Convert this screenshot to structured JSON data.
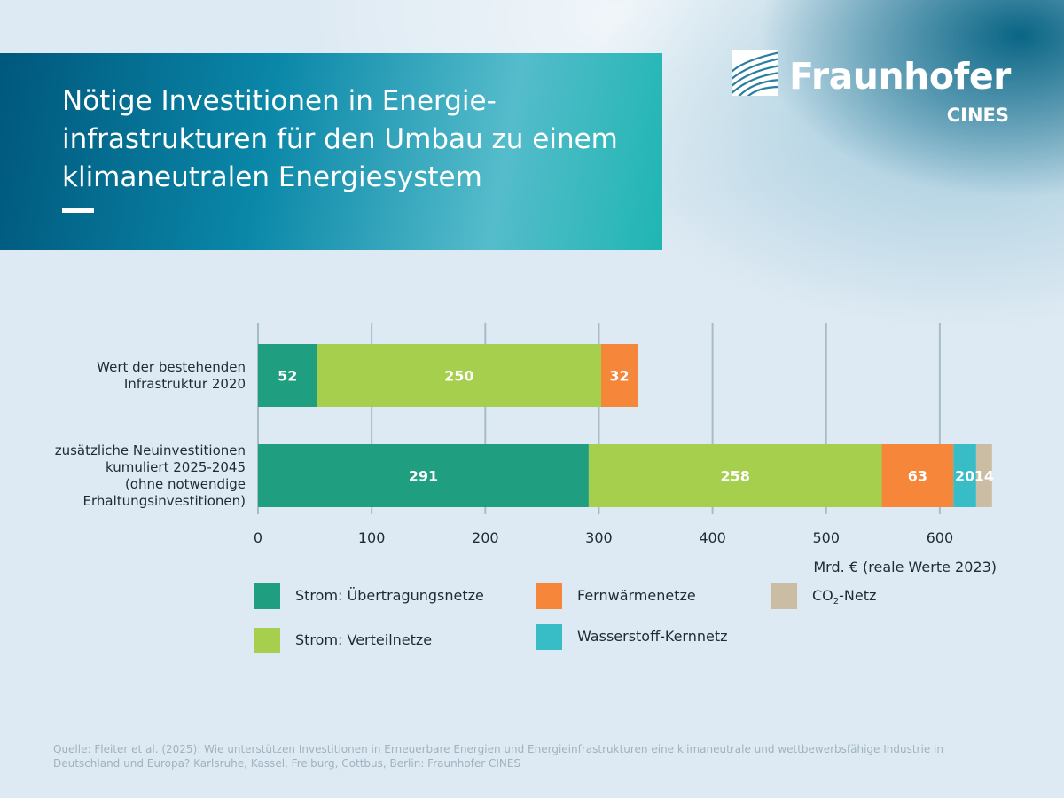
{
  "header": {
    "title_lines": [
      "Nötige Investitionen in Energie-",
      "infrastrukturen für den Umbau zu einem",
      "klimaneutralen Energiesystem"
    ],
    "logo_name": "Fraunhofer",
    "logo_sub": "CINES"
  },
  "chart_data": {
    "type": "bar",
    "orientation": "horizontal",
    "stacked": true,
    "categories": [
      [
        "Wert der bestehenden",
        "Infrastruktur 2020"
      ],
      [
        "zusätzliche Neuinvestitionen",
        "kumuliert 2025-2045",
        "(ohne notwendige",
        "Erhaltungsinvestitionen)"
      ]
    ],
    "series": [
      {
        "name": "Strom: Übertragungsnetze",
        "color": "#1f9f80",
        "values": [
          52,
          291
        ]
      },
      {
        "name": "Strom: Verteilnetze",
        "color": "#a7cf4e",
        "values": [
          250,
          258
        ]
      },
      {
        "name": "Fernwärmenetze",
        "color": "#f5863a",
        "values": [
          32,
          63
        ]
      },
      {
        "name": "Wasserstoff-Kernnetz",
        "color": "#38bcc6",
        "values": [
          0,
          20
        ]
      },
      {
        "name": "CO2-Netz",
        "color": "#cbbda4",
        "values": [
          0,
          14
        ]
      }
    ],
    "xlim": [
      0,
      650
    ],
    "xticks": [
      0,
      100,
      200,
      300,
      400,
      500,
      600
    ],
    "xlabel": "Mrd. € (reale Werte 2023)",
    "grid": "vertical",
    "legend_position": "bottom"
  },
  "legend": {
    "items": [
      {
        "label": "Strom: Übertragungsnetze",
        "color": "#1f9f80"
      },
      {
        "label": "Strom: Verteilnetze",
        "color": "#a7cf4e"
      },
      {
        "label": "Fernwärmenetze",
        "color": "#f5863a"
      },
      {
        "label": "Wasserstoff-Kernnetz",
        "color": "#38bcc6"
      },
      {
        "label_main": "CO",
        "label_sub": "2",
        "label_rest": "-Netz",
        "color": "#cbbda4"
      }
    ]
  },
  "footer": {
    "source": "Quelle: Fleiter et al. (2025): Wie unterstützen Investitionen in Erneuerbare Energien und Energieinfrastrukturen eine klimaneutrale und wettbewerbsfähige Industrie in Deutsch­land und Europa? Karlsruhe, Kassel, Freiburg, Cottbus, Berlin: Fraunhofer CINES"
  }
}
